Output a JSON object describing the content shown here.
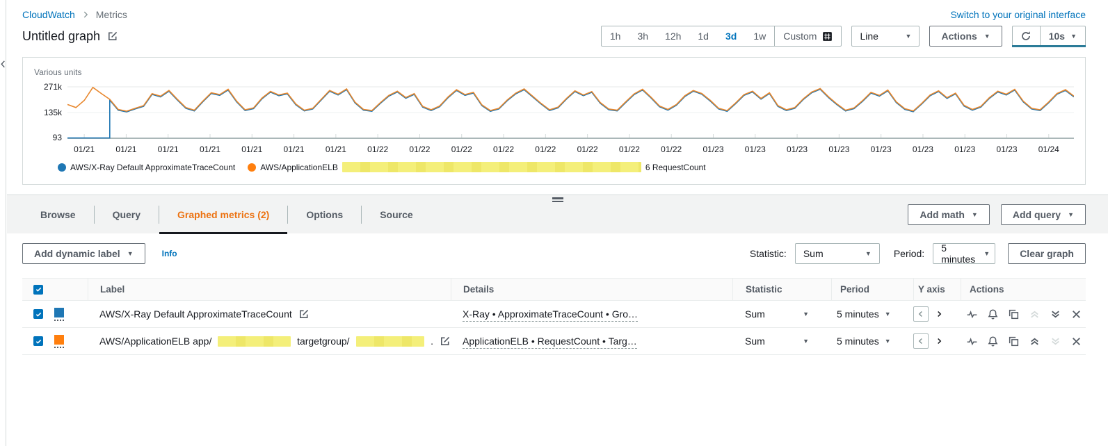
{
  "colors": {
    "link_blue": "#0073bb",
    "tab_orange": "#ec7211",
    "series_blue": "#1f77b4",
    "series_orange": "#e8872d",
    "swatch_orange": "#ff7f0e",
    "redaction_yellow": "#f4ef7a",
    "refresh_progress": "#2b7b98"
  },
  "breadcrumb": {
    "root": "CloudWatch",
    "current": "Metrics"
  },
  "header": {
    "title": "Untitled graph",
    "switch_link": "Switch to your original interface"
  },
  "toolbar": {
    "ranges": [
      "1h",
      "3h",
      "12h",
      "1d",
      "3d",
      "1w"
    ],
    "selected_range": "3d",
    "custom": "Custom",
    "chart_type": "Line",
    "actions": "Actions",
    "refresh_interval": "10s"
  },
  "chart": {
    "units_label": "Various units",
    "legend": [
      {
        "label": "AWS/X-Ray Default ApproximateTraceCount",
        "color": "#1f77b4"
      },
      {
        "prefix": "AWS/ApplicationELB",
        "suffix": "6 RequestCount",
        "color": "#ff7f0e",
        "redacted": true
      }
    ]
  },
  "chart_data": {
    "type": "line",
    "title": "Untitled graph",
    "ylabel": "Various units",
    "grid": "horizontal",
    "legend_position": "bottom",
    "y_ticks": [
      {
        "label": "271k",
        "value_k": 271
      },
      {
        "label": "135k",
        "value_k": 135
      },
      {
        "label": "93",
        "value_k": 0.093
      }
    ],
    "ylim_k": [
      0,
      290
    ],
    "x_ticks": [
      "01/21",
      "01/21",
      "01/21",
      "01/21",
      "01/21",
      "01/21",
      "01/21",
      "01/22",
      "01/22",
      "01/22",
      "01/22",
      "01/22",
      "01/22",
      "01/22",
      "01/22",
      "01/23",
      "01/23",
      "01/23",
      "01/23",
      "01/23",
      "01/23",
      "01/23",
      "01/23",
      "01/24"
    ],
    "series": [
      {
        "name": "AWS/X-Ray Default ApproximateTraceCount",
        "color": "#1f77b4",
        "shape": "flat-then-follow",
        "flat_value_k": 0.093,
        "join_fraction": 0.038
      },
      {
        "name": "AWS/ApplicationELB RequestCount",
        "color": "#e8872d",
        "values_k": [
          178,
          162,
          200,
          268,
          236,
          205,
          152,
          143,
          158,
          172,
          235,
          222,
          252,
          205,
          162,
          148,
          196,
          240,
          230,
          258,
          196,
          150,
          160,
          212,
          247,
          228,
          238,
          180,
          148,
          158,
          205,
          252,
          232,
          260,
          190,
          152,
          146,
          188,
          226,
          248,
          215,
          235,
          168,
          150,
          170,
          218,
          256,
          230,
          242,
          176,
          146,
          158,
          202,
          238,
          260,
          222,
          184,
          150,
          164,
          210,
          250,
          228,
          246,
          188,
          154,
          148,
          192,
          234,
          258,
          216,
          170,
          152,
          178,
          224,
          252,
          236,
          200,
          158,
          146,
          186,
          230,
          248,
          210,
          240,
          172,
          150,
          162,
          208,
          244,
          262,
          218,
          180,
          148,
          160,
          198,
          242,
          226,
          254,
          192,
          156,
          144,
          184,
          228,
          250,
          214,
          238,
          174,
          152,
          168,
          214,
          248,
          232,
          258,
          196,
          158,
          150,
          190,
          236,
          256,
          222
        ]
      }
    ]
  },
  "tabs": {
    "items": [
      "Browse",
      "Query",
      "Graphed metrics (2)",
      "Options",
      "Source"
    ],
    "selected": "Graphed metrics (2)"
  },
  "graphed_panel": {
    "add_math": "Add math",
    "add_query": "Add query",
    "add_dynamic_label": "Add dynamic label",
    "info_link": "Info",
    "statistic_label": "Statistic:",
    "statistic_value": "Sum",
    "period_label": "Period:",
    "period_value": "5 minutes",
    "clear_graph": "Clear graph"
  },
  "table": {
    "headers": {
      "label": "Label",
      "details": "Details",
      "statistic": "Statistic",
      "period": "Period",
      "y_axis": "Y axis",
      "actions": "Actions"
    },
    "rows": [
      {
        "color": "#1f77b4",
        "label": "AWS/X-Ray Default ApproximateTraceCount",
        "details": "X-Ray • ApproximateTraceCount • Gro…",
        "statistic": "Sum",
        "period": "5 minutes",
        "y_axis": "left",
        "move_up_enabled": false,
        "move_down_enabled": true
      },
      {
        "color": "#ff7f0e",
        "label_prefix": "AWS/ApplicationELB app/",
        "label_mid": "targetgroup/",
        "label_suffix": ".",
        "label_redacted": true,
        "details": "ApplicationELB • RequestCount • Targ…",
        "statistic": "Sum",
        "period": "5 minutes",
        "y_axis": "left",
        "move_up_enabled": true,
        "move_down_enabled": false
      }
    ]
  }
}
